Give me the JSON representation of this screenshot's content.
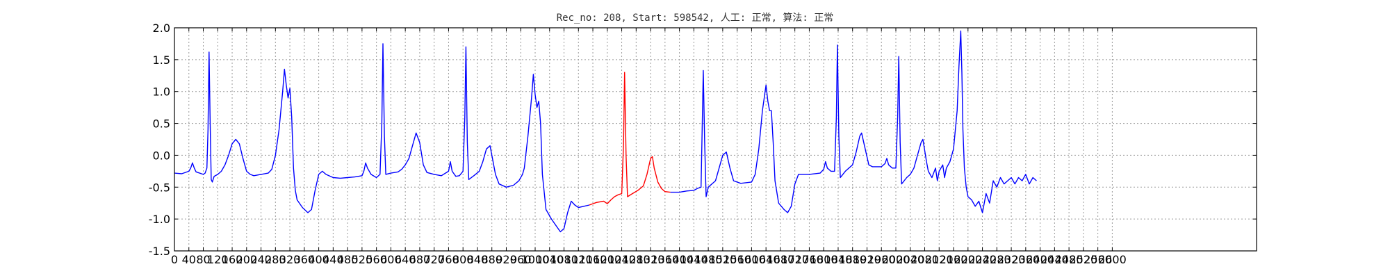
{
  "chart_data": {
    "type": "line",
    "title": "Rec_no: 208, Start: 598542, 人工: 正常, 算法: 正常",
    "xlabel": "",
    "ylabel": "",
    "xlim": [
      0,
      3000
    ],
    "ylim": [
      -1.5,
      2.0
    ],
    "grid": true,
    "x_ticks": [
      0,
      40,
      80,
      120,
      160,
      200,
      240,
      280,
      320,
      360,
      400,
      440,
      480,
      520,
      560,
      600,
      640,
      680,
      720,
      760,
      800,
      840,
      880,
      920,
      960,
      1000,
      1040,
      1080,
      1120,
      1160,
      1200,
      1240,
      1280,
      1320,
      1360,
      1400,
      1440,
      1480,
      1520,
      1560,
      1600,
      1640,
      1680,
      1720,
      1760,
      1800,
      1840,
      1880,
      1920,
      1960,
      2000,
      2040,
      2080,
      2120,
      2160,
      2200,
      2240,
      2280,
      2320,
      2360,
      2400,
      2440,
      2480,
      2520,
      2560,
      2600
    ],
    "x_tick_labels": [
      "0",
      "40",
      "80",
      "120",
      "160",
      "200",
      "240",
      "280",
      "320",
      "360",
      "400",
      "440",
      "480",
      "520",
      "560",
      "600",
      "640",
      "680",
      "720",
      "760",
      "800",
      "840",
      "880",
      "920",
      "960",
      "1000",
      "1040",
      "1080",
      "1120",
      "1160",
      "1200",
      "1240",
      "1280",
      "1320",
      "1360",
      "1400",
      "1440",
      "1480",
      "1520",
      "1560",
      "1600",
      "1640",
      "1680",
      "1720",
      "1760",
      "1800",
      "1840",
      "1880",
      "1920",
      "1960",
      "2000",
      "2040",
      "2080",
      "2120",
      "2160",
      "2200",
      "2240",
      "2280",
      "2320",
      "2360",
      "2400",
      "2440",
      "2480",
      "2520",
      "2560",
      "2600"
    ],
    "y_ticks": [
      -1.5,
      -1.0,
      -0.5,
      0.0,
      0.5,
      1.0,
      1.5,
      2.0
    ],
    "y_tick_labels": [
      "-1.5",
      "-1.0",
      "-0.5",
      "0.0",
      "0.5",
      "1.0",
      "1.5",
      "2.0"
    ],
    "colors": {
      "normal": "#0000ff",
      "highlight": "#ff0000",
      "grid": "#9a9a9a",
      "axis": "#000000"
    },
    "series": [
      {
        "segment": "before",
        "color": "#0000ff",
        "points": [
          [
            0,
            -0.28
          ],
          [
            20,
            -0.29
          ],
          [
            40,
            -0.25
          ],
          [
            45,
            -0.2
          ],
          [
            50,
            -0.12
          ],
          [
            55,
            -0.2
          ],
          [
            60,
            -0.26
          ],
          [
            80,
            -0.3
          ],
          [
            85,
            -0.28
          ],
          [
            90,
            -0.2
          ],
          [
            93,
            0.4
          ],
          [
            96,
            1.62
          ],
          [
            99,
            0.5
          ],
          [
            102,
            -0.38
          ],
          [
            105,
            -0.42
          ],
          [
            110,
            -0.33
          ],
          [
            120,
            -0.3
          ],
          [
            130,
            -0.25
          ],
          [
            140,
            -0.15
          ],
          [
            150,
            0.0
          ],
          [
            160,
            0.18
          ],
          [
            170,
            0.25
          ],
          [
            180,
            0.18
          ],
          [
            190,
            -0.05
          ],
          [
            200,
            -0.25
          ],
          [
            210,
            -0.3
          ],
          [
            220,
            -0.32
          ],
          [
            240,
            -0.3
          ],
          [
            260,
            -0.28
          ],
          [
            270,
            -0.22
          ],
          [
            280,
            0.0
          ],
          [
            290,
            0.4
          ],
          [
            300,
            1.0
          ],
          [
            305,
            1.35
          ],
          [
            310,
            1.1
          ],
          [
            315,
            0.9
          ],
          [
            320,
            1.05
          ],
          [
            325,
            0.6
          ],
          [
            330,
            -0.2
          ],
          [
            335,
            -0.55
          ],
          [
            340,
            -0.7
          ],
          [
            355,
            -0.82
          ],
          [
            370,
            -0.9
          ],
          [
            380,
            -0.85
          ],
          [
            390,
            -0.55
          ],
          [
            400,
            -0.3
          ],
          [
            410,
            -0.25
          ],
          [
            420,
            -0.3
          ],
          [
            440,
            -0.35
          ],
          [
            460,
            -0.36
          ],
          [
            480,
            -0.35
          ],
          [
            500,
            -0.34
          ],
          [
            520,
            -0.32
          ],
          [
            525,
            -0.25
          ],
          [
            530,
            -0.12
          ],
          [
            535,
            -0.2
          ],
          [
            545,
            -0.3
          ],
          [
            560,
            -0.35
          ],
          [
            570,
            -0.3
          ],
          [
            575,
            0.5
          ],
          [
            578,
            1.75
          ],
          [
            582,
            0.3
          ],
          [
            586,
            -0.3
          ],
          [
            600,
            -0.28
          ],
          [
            620,
            -0.26
          ],
          [
            630,
            -0.22
          ],
          [
            640,
            -0.15
          ],
          [
            650,
            -0.05
          ],
          [
            660,
            0.15
          ],
          [
            670,
            0.35
          ],
          [
            680,
            0.2
          ],
          [
            690,
            -0.15
          ],
          [
            700,
            -0.27
          ],
          [
            720,
            -0.3
          ],
          [
            740,
            -0.32
          ],
          [
            760,
            -0.25
          ],
          [
            765,
            -0.1
          ],
          [
            770,
            -0.25
          ],
          [
            780,
            -0.33
          ],
          [
            790,
            -0.32
          ],
          [
            800,
            -0.25
          ],
          [
            805,
            0.6
          ],
          [
            808,
            1.7
          ],
          [
            812,
            0.2
          ],
          [
            816,
            -0.38
          ],
          [
            830,
            -0.32
          ],
          [
            845,
            -0.25
          ],
          [
            855,
            -0.1
          ],
          [
            865,
            0.1
          ],
          [
            875,
            0.15
          ],
          [
            880,
            0.0
          ],
          [
            890,
            -0.3
          ],
          [
            900,
            -0.45
          ],
          [
            920,
            -0.5
          ],
          [
            940,
            -0.47
          ],
          [
            955,
            -0.4
          ],
          [
            965,
            -0.3
          ],
          [
            970,
            -0.2
          ],
          [
            980,
            0.3
          ],
          [
            990,
            0.9
          ],
          [
            995,
            1.27
          ],
          [
            1000,
            0.95
          ],
          [
            1005,
            0.75
          ],
          [
            1010,
            0.85
          ],
          [
            1015,
            0.5
          ],
          [
            1020,
            -0.3
          ],
          [
            1030,
            -0.85
          ],
          [
            1045,
            -1.0
          ],
          [
            1060,
            -1.12
          ],
          [
            1070,
            -1.2
          ],
          [
            1080,
            -1.15
          ],
          [
            1090,
            -0.9
          ],
          [
            1100,
            -0.72
          ],
          [
            1110,
            -0.78
          ],
          [
            1120,
            -0.82
          ],
          [
            1135,
            -0.8
          ],
          [
            1150,
            -0.78
          ]
        ]
      },
      {
        "segment": "highlighted-beat",
        "color": "#ff0000",
        "points": [
          [
            1150,
            -0.78
          ],
          [
            1170,
            -0.74
          ],
          [
            1190,
            -0.72
          ],
          [
            1200,
            -0.76
          ],
          [
            1210,
            -0.7
          ],
          [
            1220,
            -0.65
          ],
          [
            1230,
            -0.62
          ],
          [
            1240,
            -0.6
          ],
          [
            1245,
            0.2
          ],
          [
            1248,
            1.3
          ],
          [
            1252,
            0.0
          ],
          [
            1256,
            -0.65
          ],
          [
            1270,
            -0.6
          ],
          [
            1285,
            -0.55
          ],
          [
            1300,
            -0.48
          ],
          [
            1310,
            -0.3
          ],
          [
            1320,
            -0.05
          ],
          [
            1325,
            -0.02
          ],
          [
            1330,
            -0.2
          ],
          [
            1340,
            -0.42
          ],
          [
            1350,
            -0.52
          ],
          [
            1360,
            -0.57
          ],
          [
            1375,
            -0.58
          ]
        ]
      },
      {
        "segment": "after",
        "color": "#0000ff",
        "points": [
          [
            1375,
            -0.58
          ],
          [
            1400,
            -0.58
          ],
          [
            1420,
            -0.56
          ],
          [
            1440,
            -0.55
          ],
          [
            1450,
            -0.52
          ],
          [
            1460,
            -0.5
          ],
          [
            1463,
            0.4
          ],
          [
            1466,
            1.33
          ],
          [
            1470,
            0.2
          ],
          [
            1474,
            -0.65
          ],
          [
            1480,
            -0.5
          ],
          [
            1500,
            -0.4
          ],
          [
            1510,
            -0.2
          ],
          [
            1520,
            0.0
          ],
          [
            1530,
            0.05
          ],
          [
            1540,
            -0.2
          ],
          [
            1550,
            -0.4
          ],
          [
            1570,
            -0.44
          ],
          [
            1600,
            -0.42
          ],
          [
            1610,
            -0.3
          ],
          [
            1620,
            0.1
          ],
          [
            1630,
            0.7
          ],
          [
            1640,
            1.1
          ],
          [
            1645,
            0.85
          ],
          [
            1650,
            0.7
          ],
          [
            1655,
            0.7
          ],
          [
            1660,
            0.2
          ],
          [
            1665,
            -0.4
          ],
          [
            1675,
            -0.75
          ],
          [
            1690,
            -0.85
          ],
          [
            1700,
            -0.9
          ],
          [
            1710,
            -0.8
          ],
          [
            1720,
            -0.45
          ],
          [
            1730,
            -0.3
          ],
          [
            1760,
            -0.3
          ],
          [
            1790,
            -0.28
          ],
          [
            1800,
            -0.22
          ],
          [
            1805,
            -0.1
          ],
          [
            1810,
            -0.2
          ],
          [
            1820,
            -0.25
          ],
          [
            1830,
            -0.25
          ],
          [
            1835,
            0.6
          ],
          [
            1838,
            1.73
          ],
          [
            1842,
            0.3
          ],
          [
            1846,
            -0.35
          ],
          [
            1860,
            -0.25
          ],
          [
            1880,
            -0.15
          ],
          [
            1890,
            0.05
          ],
          [
            1900,
            0.3
          ],
          [
            1905,
            0.35
          ],
          [
            1915,
            0.1
          ],
          [
            1925,
            -0.15
          ],
          [
            1935,
            -0.18
          ],
          [
            1960,
            -0.18
          ],
          [
            1970,
            -0.13
          ],
          [
            1975,
            -0.05
          ],
          [
            1980,
            -0.15
          ],
          [
            1990,
            -0.2
          ],
          [
            2000,
            -0.2
          ],
          [
            2005,
            0.6
          ],
          [
            2008,
            1.55
          ],
          [
            2012,
            0.2
          ],
          [
            2016,
            -0.45
          ],
          [
            2030,
            -0.35
          ],
          [
            2040,
            -0.3
          ],
          [
            2050,
            -0.2
          ],
          [
            2060,
            0.0
          ],
          [
            2070,
            0.2
          ],
          [
            2075,
            0.25
          ],
          [
            2085,
            -0.1
          ],
          [
            2090,
            -0.25
          ],
          [
            2100,
            -0.35
          ],
          [
            2110,
            -0.2
          ],
          [
            2115,
            -0.4
          ],
          [
            2120,
            -0.25
          ],
          [
            2130,
            -0.15
          ],
          [
            2135,
            -0.35
          ],
          [
            2140,
            -0.2
          ],
          [
            2150,
            -0.1
          ],
          [
            2160,
            0.1
          ],
          [
            2170,
            0.7
          ],
          [
            2175,
            1.4
          ],
          [
            2180,
            1.95
          ],
          [
            2183,
            1.3
          ],
          [
            2186,
            0.4
          ],
          [
            2190,
            -0.2
          ],
          [
            2195,
            -0.5
          ],
          [
            2200,
            -0.65
          ],
          [
            2210,
            -0.7
          ],
          [
            2220,
            -0.8
          ],
          [
            2230,
            -0.72
          ],
          [
            2240,
            -0.9
          ],
          [
            2250,
            -0.6
          ],
          [
            2260,
            -0.75
          ],
          [
            2270,
            -0.4
          ],
          [
            2280,
            -0.5
          ],
          [
            2290,
            -0.35
          ],
          [
            2300,
            -0.45
          ],
          [
            2310,
            -0.4
          ],
          [
            2320,
            -0.35
          ],
          [
            2330,
            -0.45
          ],
          [
            2340,
            -0.35
          ],
          [
            2350,
            -0.4
          ],
          [
            2360,
            -0.3
          ],
          [
            2370,
            -0.45
          ],
          [
            2380,
            -0.35
          ],
          [
            2390,
            -0.4
          ]
        ]
      }
    ]
  }
}
